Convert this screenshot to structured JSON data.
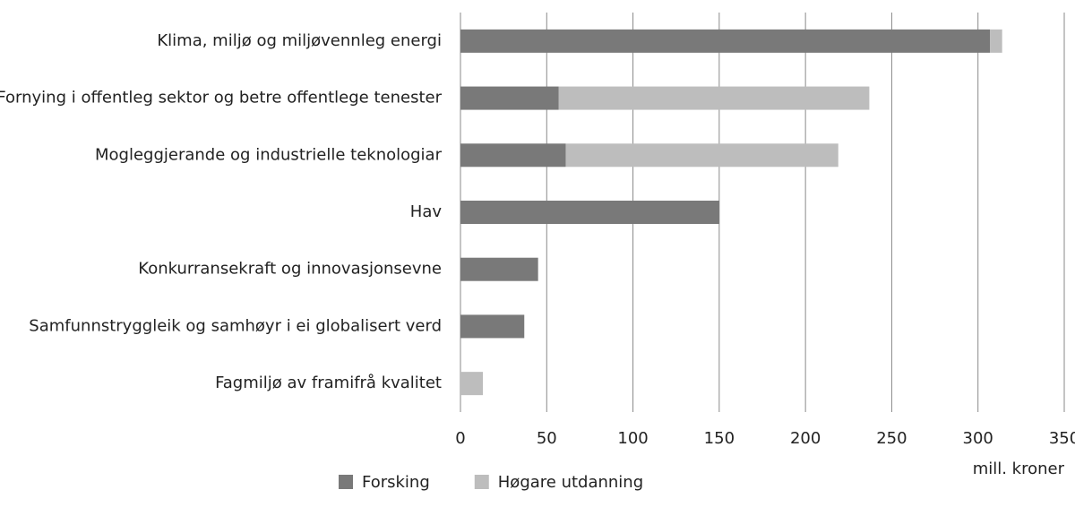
{
  "chart_data": {
    "type": "barh",
    "categories": [
      "Klima, miljø og miljøvennleg energi",
      "Fornying i offentleg sektor og betre offentlege tenester",
      "Mogleggjerande og industrielle teknologiar",
      "Hav",
      "Konkurransekraft og innovasjonsevne",
      "Samfunnstryggleik og samhøyr i ei globalisert verd",
      "Fagmiljø av framifrå kvalitet"
    ],
    "series": [
      {
        "name": "Forsking",
        "color": "#797979",
        "values": [
          307,
          57,
          61,
          150,
          45,
          37,
          0
        ]
      },
      {
        "name": "Høgare utdanning",
        "color": "#bdbdbd",
        "values": [
          7,
          180,
          158,
          0,
          0,
          0,
          13
        ]
      }
    ],
    "xlim": [
      0,
      350
    ],
    "xticks": [
      0,
      50,
      100,
      150,
      200,
      250,
      300,
      350
    ],
    "xlabel": "mill. kroner",
    "grid": true
  }
}
